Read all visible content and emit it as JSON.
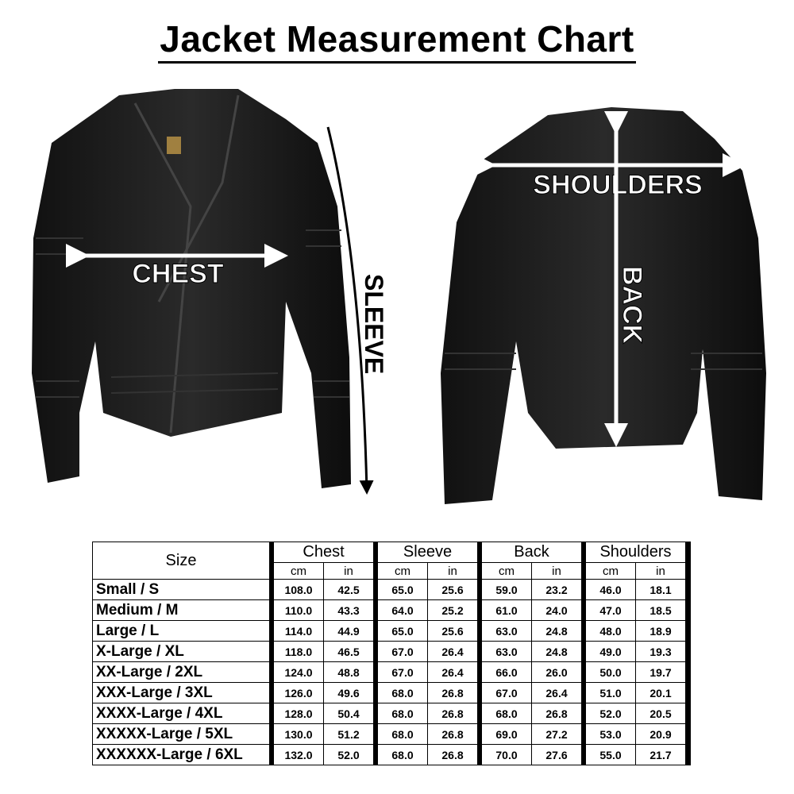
{
  "title": "Jacket Measurement Chart",
  "labels": {
    "chest": "CHEST",
    "sleeve": "SLEEVE",
    "shoulders": "SHOULDERS",
    "back": "BACK"
  },
  "table": {
    "size_header": "Size",
    "groups": [
      "Chest",
      "Sleeve",
      "Back",
      "Shoulders"
    ],
    "units": [
      "cm",
      "in"
    ],
    "rows": [
      {
        "size": "Small / S",
        "values": [
          "108.0",
          "42.5",
          "65.0",
          "25.6",
          "59.0",
          "23.2",
          "46.0",
          "18.1"
        ]
      },
      {
        "size": "Medium / M",
        "values": [
          "110.0",
          "43.3",
          "64.0",
          "25.2",
          "61.0",
          "24.0",
          "47.0",
          "18.5"
        ]
      },
      {
        "size": "Large / L",
        "values": [
          "114.0",
          "44.9",
          "65.0",
          "25.6",
          "63.0",
          "24.8",
          "48.0",
          "18.9"
        ]
      },
      {
        "size": "X-Large / XL",
        "values": [
          "118.0",
          "46.5",
          "67.0",
          "26.4",
          "63.0",
          "24.8",
          "49.0",
          "19.3"
        ]
      },
      {
        "size": "XX-Large / 2XL",
        "values": [
          "124.0",
          "48.8",
          "67.0",
          "26.4",
          "66.0",
          "26.0",
          "50.0",
          "19.7"
        ]
      },
      {
        "size": "XXX-Large / 3XL",
        "values": [
          "126.0",
          "49.6",
          "68.0",
          "26.8",
          "67.0",
          "26.4",
          "51.0",
          "20.1"
        ]
      },
      {
        "size": "XXXX-Large / 4XL",
        "values": [
          "128.0",
          "50.4",
          "68.0",
          "26.8",
          "68.0",
          "26.8",
          "52.0",
          "20.5"
        ]
      },
      {
        "size": "XXXXX-Large / 5XL",
        "values": [
          "130.0",
          "51.2",
          "68.0",
          "26.8",
          "69.0",
          "27.2",
          "53.0",
          "20.9"
        ]
      },
      {
        "size": "XXXXXX-Large / 6XL",
        "values": [
          "132.0",
          "52.0",
          "68.0",
          "26.8",
          "70.0",
          "27.6",
          "55.0",
          "21.7"
        ]
      }
    ]
  }
}
